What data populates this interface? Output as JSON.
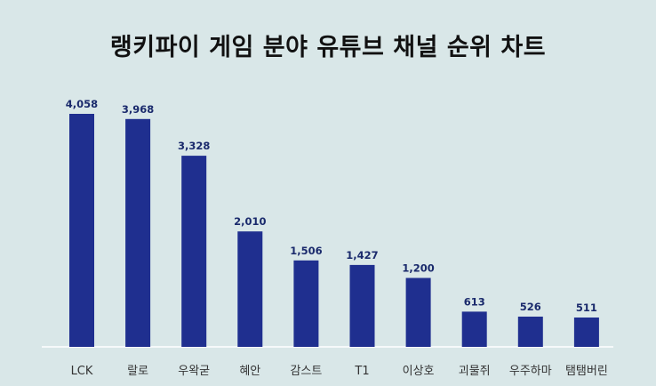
{
  "chart_data": {
    "type": "bar",
    "title": "랭키파이 게임 분야 유튜브 채널 순위 차트",
    "categories": [
      "LCK",
      "랄로",
      "우왁굳",
      "혜안",
      "감스트",
      "T1",
      "이상호",
      "괴물쥐",
      "우주하마",
      "탬탬버린"
    ],
    "values": [
      4058,
      3968,
      3328,
      2010,
      1506,
      1427,
      1200,
      613,
      526,
      511
    ],
    "value_labels": [
      "4,058",
      "3,968",
      "3,328",
      "2,010",
      "1,506",
      "1,427",
      "1,200",
      "613",
      "526",
      "511"
    ],
    "ylim": [
      0,
      4058
    ],
    "grid": false,
    "legend": "none",
    "colors": {
      "bar": "#1f2f8f",
      "background": "#d9e7e8",
      "value_label": "#1a2a6c",
      "baseline": "#ffffff"
    }
  }
}
